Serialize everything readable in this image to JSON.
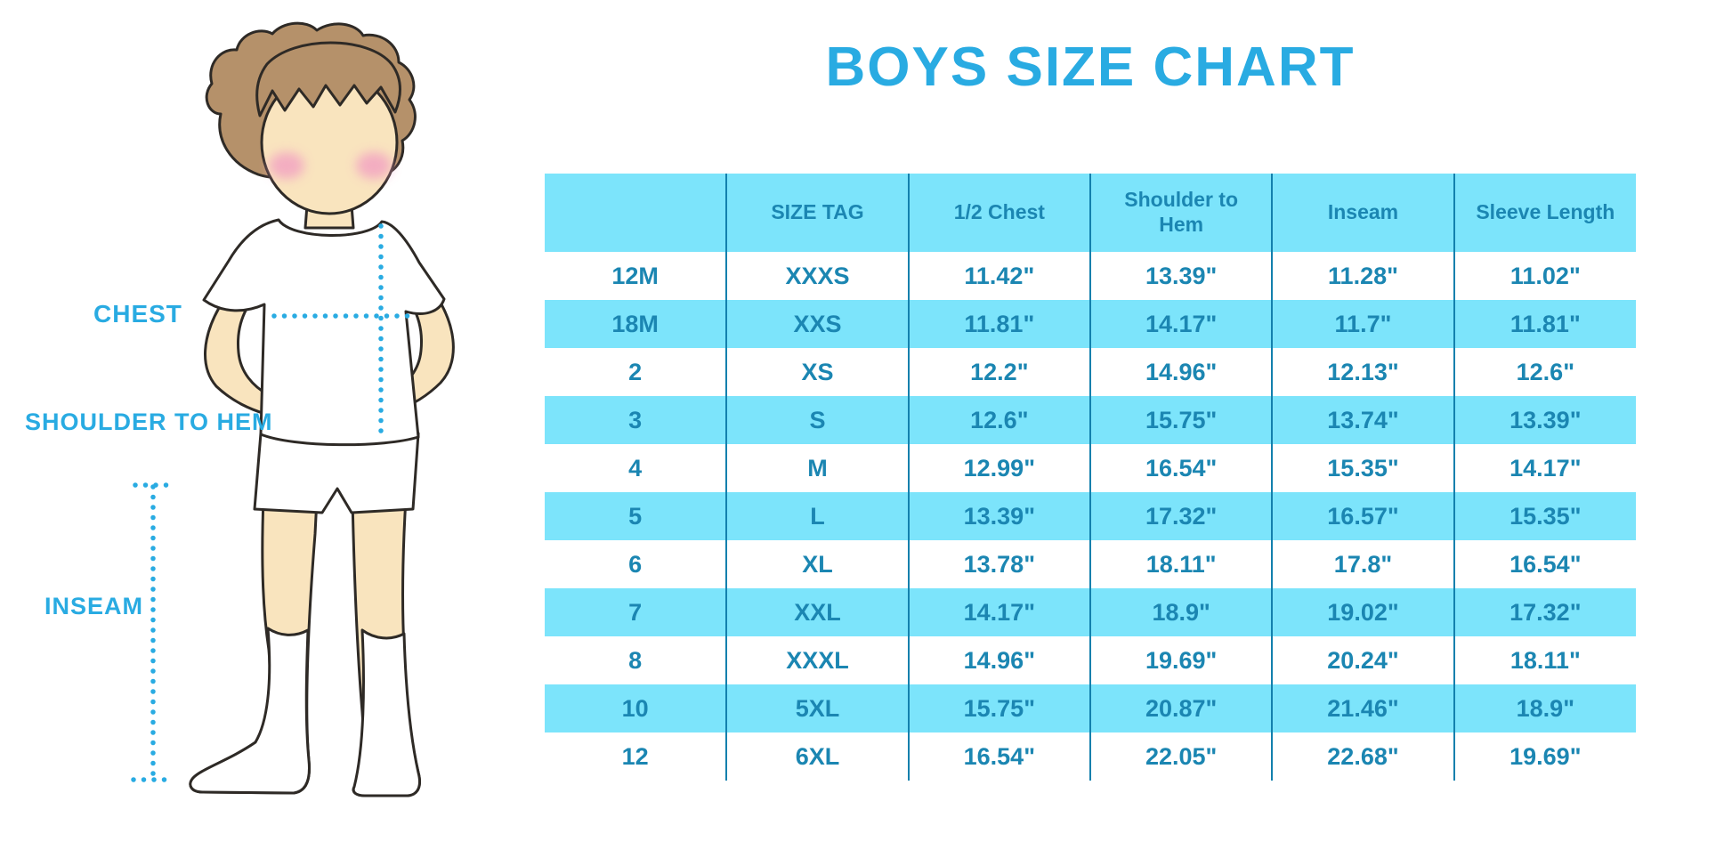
{
  "title": "BOYS SIZE CHART",
  "diagram": {
    "labels": {
      "chest": "CHEST",
      "shoulder_to_hem": "SHOULDER TO HEM",
      "inseam": "INSEAM"
    },
    "icons": [
      "boy-figure-illustration",
      "chest-dotted-line",
      "shoulder-to-hem-dotted-line",
      "inseam-dotted-line"
    ]
  },
  "colors": {
    "accent_blue": "#29ABE2",
    "table_cyan": "#7ce4fb",
    "table_text": "#1b86b2",
    "divider": "#1380ad",
    "skin": "#f9e4be",
    "hair": "#b5916a"
  },
  "chart_data": {
    "type": "table",
    "title": "BOYS SIZE CHART",
    "columns": [
      "",
      "SIZE TAG",
      "1/2 Chest",
      "Shoulder to Hem",
      "Inseam",
      "Sleeve Length"
    ],
    "rows": [
      [
        "12M",
        "XXXS",
        "11.42\"",
        "13.39\"",
        "11.28\"",
        "11.02\""
      ],
      [
        "18M",
        "XXS",
        "11.81\"",
        "14.17\"",
        "11.7\"",
        "11.81\""
      ],
      [
        "2",
        "XS",
        "12.2\"",
        "14.96\"",
        "12.13\"",
        "12.6\""
      ],
      [
        "3",
        "S",
        "12.6\"",
        "15.75\"",
        "13.74\"",
        "13.39\""
      ],
      [
        "4",
        "M",
        "12.99\"",
        "16.54\"",
        "15.35\"",
        "14.17\""
      ],
      [
        "5",
        "L",
        "13.39\"",
        "17.32\"",
        "16.57\"",
        "15.35\""
      ],
      [
        "6",
        "XL",
        "13.78\"",
        "18.11\"",
        "17.8\"",
        "16.54\""
      ],
      [
        "7",
        "XXL",
        "14.17\"",
        "18.9\"",
        "19.02\"",
        "17.32\""
      ],
      [
        "8",
        "XXXL",
        "14.96\"",
        "19.69\"",
        "20.24\"",
        "18.11\""
      ],
      [
        "10",
        "5XL",
        "15.75\"",
        "20.87\"",
        "21.46\"",
        "18.9\""
      ],
      [
        "12",
        "6XL",
        "16.54\"",
        "22.05\"",
        "22.68\"",
        "19.69\""
      ]
    ],
    "row_striping": [
      "white",
      "cyan"
    ],
    "legend_position": "none",
    "grid": "vertical-dividers-only"
  }
}
